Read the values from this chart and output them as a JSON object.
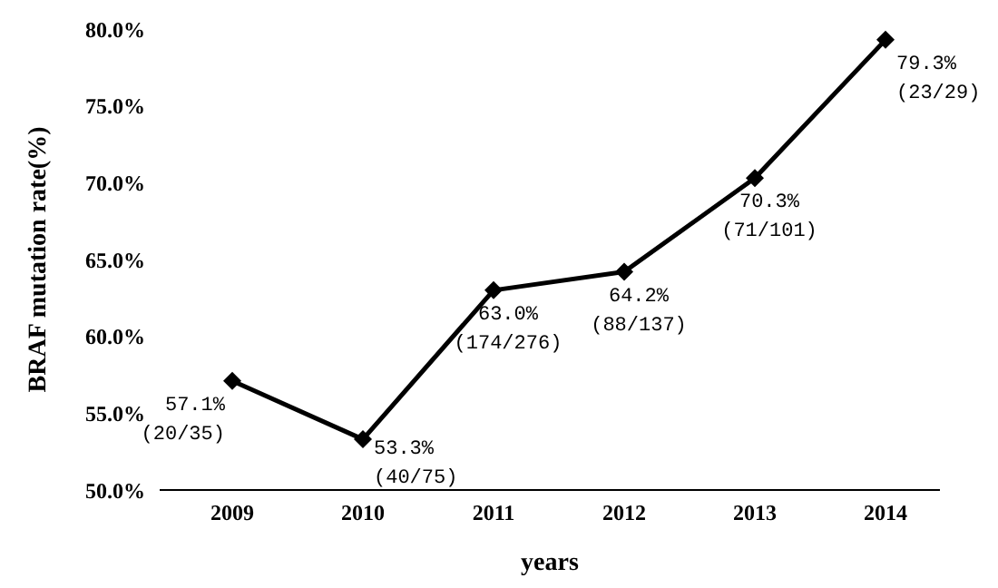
{
  "chart_data": {
    "type": "line",
    "xlabel": "years",
    "ylabel": "BRAF mutation rate(%)",
    "categories": [
      "2009",
      "2010",
      "2011",
      "2012",
      "2013",
      "2014"
    ],
    "series": [
      {
        "color": "#000000",
        "values": [
          57.1,
          53.3,
          63.0,
          64.2,
          70.3,
          79.3
        ],
        "value_labels": [
          "57.1%\n(20/35)",
          "53.3%\n(40/75)",
          "63.0%\n(174/276)",
          "64.2%\n(88/137)",
          "70.3%\n(71/101)",
          "79.3%\n(23/29)"
        ]
      }
    ],
    "ylim": [
      50,
      80
    ],
    "yticks": [
      {
        "value": 50,
        "label": "50.0%"
      },
      {
        "value": 55,
        "label": "55.0%"
      },
      {
        "value": 60,
        "label": "60.0%"
      },
      {
        "value": 65,
        "label": "65.0%"
      },
      {
        "value": 70,
        "label": "70.0%"
      },
      {
        "value": 75,
        "label": "75.0%"
      },
      {
        "value": 80,
        "label": "80.0%"
      }
    ],
    "grid": false,
    "legend": false,
    "marker": "diamond",
    "line_style": "solid"
  }
}
